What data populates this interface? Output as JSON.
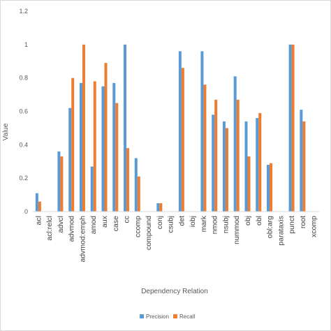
{
  "chart_data": {
    "type": "bar",
    "title": "",
    "xlabel": "Dependency Relation",
    "ylabel": "Value",
    "ylim": [
      0,
      1.2
    ],
    "yticks": [
      "0",
      "0.2",
      "0.4",
      "0.6",
      "0.8",
      "1",
      "1.2"
    ],
    "grid": false,
    "legend_position": "bottom",
    "categories": [
      "acl",
      "acl:relcl",
      "advcl",
      "advmod",
      "advmod:emph",
      "amod",
      "aux",
      "case",
      "cc",
      "ccomp",
      "compound",
      "conj",
      "csubj",
      "det",
      "iobj",
      "mark",
      "nmod",
      "nsubj",
      "nummod",
      "obj",
      "obl",
      "obl:arg",
      "parataxis",
      "punct",
      "root",
      "xcomp"
    ],
    "series": [
      {
        "name": "Precision",
        "color": "#5b9bd5",
        "values": [
          0.11,
          0,
          0.36,
          0.62,
          0.77,
          0.27,
          0.75,
          0.77,
          1.0,
          0.32,
          0,
          0.05,
          0,
          0.96,
          0,
          0.96,
          0.58,
          0.54,
          0.81,
          0.54,
          0.56,
          0.28,
          0,
          1.0,
          0.61,
          0
        ]
      },
      {
        "name": "Recall",
        "color": "#ed7d31",
        "values": [
          0.06,
          0,
          0.33,
          0.8,
          1.0,
          0.78,
          0.89,
          0.65,
          0.38,
          0.21,
          0,
          0.05,
          0,
          0.86,
          0,
          0.76,
          0.67,
          0.5,
          0.67,
          0.33,
          0.59,
          0.29,
          0,
          1.0,
          0.54,
          0
        ]
      }
    ]
  }
}
